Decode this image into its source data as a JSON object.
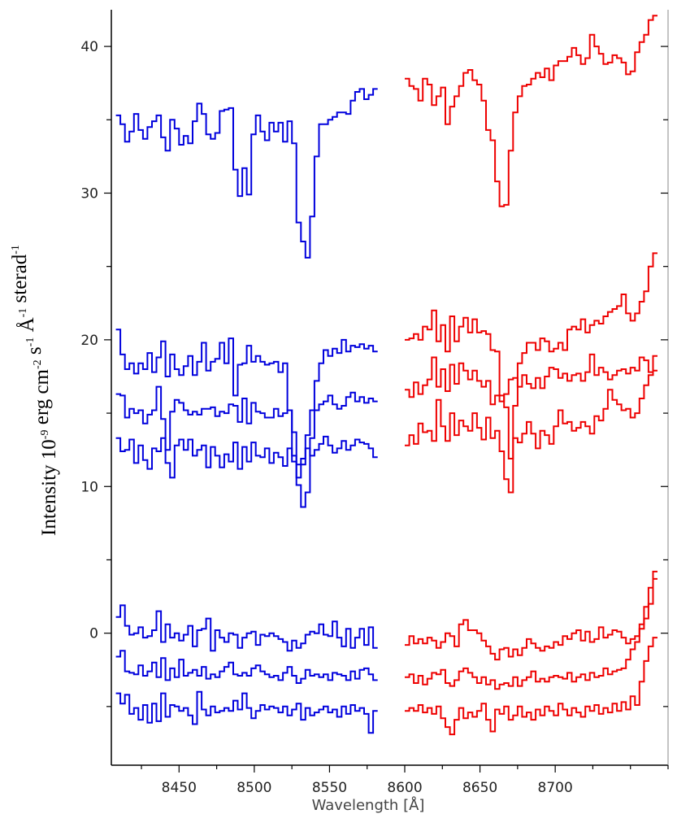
{
  "chart_data": {
    "type": "line",
    "step": true,
    "xlabel": "Wavelength [Å]",
    "ylabel": {
      "parts": [
        {
          "text": "Intensity 10"
        },
        {
          "text": "-9",
          "sup": true
        },
        {
          "text": " erg cm"
        },
        {
          "text": "-2",
          "sup": true
        },
        {
          "text": " s"
        },
        {
          "text": "-1",
          "sup": true
        },
        {
          "text": " Å"
        },
        {
          "text": "-1",
          "sup": true
        },
        {
          "text": " sterad"
        },
        {
          "text": "-1",
          "sup": true
        }
      ]
    },
    "xlim": [
      8405,
      8775
    ],
    "ylim": [
      -9,
      42.5
    ],
    "xticks": [
      8450,
      8500,
      8550,
      8600,
      8650,
      8700
    ],
    "yticks": [
      0,
      10,
      20,
      30,
      40
    ],
    "colors": {
      "blue": "#0000dd",
      "red": "#ee0000",
      "axis": "#000000"
    },
    "series": [
      {
        "color": "blue",
        "x0": 8408,
        "dx": 3,
        "values": [
          35.3,
          34.7,
          33.5,
          34.2,
          35.4,
          34.3,
          33.7,
          34.5,
          34.9,
          35.3,
          33.8,
          32.9,
          35.0,
          34.4,
          33.3,
          33.9,
          33.4,
          34.9,
          36.1,
          35.4,
          34.0,
          33.7,
          34.1,
          35.6,
          35.7,
          35.8,
          31.6,
          29.8,
          31.7,
          29.9,
          34.0,
          35.3,
          34.2,
          33.6,
          34.8,
          34.2,
          34.8,
          33.5,
          34.9,
          33.4,
          28.0,
          26.7,
          25.6,
          28.4,
          32.5,
          34.7,
          34.7,
          35.0,
          35.2,
          35.5,
          35.5,
          35.4,
          36.3,
          36.9,
          37.1,
          36.4,
          36.7,
          37.1
        ]
      },
      {
        "color": "red",
        "x0": 8600,
        "dx": 3,
        "values": [
          37.8,
          37.3,
          37.1,
          36.3,
          37.8,
          37.4,
          36.0,
          36.6,
          37.2,
          34.7,
          35.9,
          36.6,
          37.3,
          38.2,
          38.4,
          37.7,
          37.4,
          36.3,
          34.3,
          33.6,
          30.8,
          29.1,
          29.2,
          32.9,
          35.5,
          36.6,
          37.3,
          37.4,
          37.8,
          38.2,
          37.9,
          38.5,
          37.7,
          38.7,
          39.0,
          39.0,
          39.3,
          39.9,
          39.4,
          38.8,
          39.2,
          40.8,
          40.0,
          39.5,
          38.8,
          38.9,
          39.4,
          39.2,
          38.9,
          38.1,
          38.3,
          39.6,
          40.3,
          40.8,
          41.8,
          42.1
        ]
      },
      {
        "color": "blue",
        "x0": 8408,
        "dx": 3,
        "values": [
          20.7,
          19.0,
          18.0,
          18.4,
          17.7,
          18.4,
          18.0,
          19.1,
          17.8,
          18.8,
          19.9,
          17.5,
          19.0,
          18.0,
          17.6,
          18.2,
          18.9,
          17.6,
          18.5,
          19.8,
          17.9,
          18.5,
          18.7,
          19.8,
          18.4,
          20.1,
          16.2,
          18.3,
          18.4,
          19.6,
          18.5,
          18.9,
          18.5,
          18.3,
          18.4,
          18.5,
          17.8,
          18.4,
          15.2,
          12.1,
          10.1,
          8.6,
          9.6,
          13.3,
          17.2,
          18.4,
          19.3,
          18.9,
          19.4,
          19.1,
          20.0,
          19.2,
          19.6,
          19.5,
          19.7,
          19.4,
          19.6,
          19.2
        ]
      },
      {
        "color": "red",
        "x0": 8600,
        "dx": 3,
        "values": [
          20.0,
          20.1,
          20.4,
          20.0,
          20.9,
          20.7,
          22.0,
          19.9,
          21.0,
          19.2,
          21.6,
          19.9,
          20.9,
          21.5,
          20.5,
          21.4,
          20.5,
          20.6,
          20.4,
          19.3,
          19.2,
          16.2,
          15.4,
          11.9,
          15.5,
          18.4,
          19.1,
          19.8,
          19.8,
          19.3,
          20.1,
          19.9,
          19.2,
          19.4,
          19.8,
          19.3,
          20.7,
          20.9,
          20.7,
          21.4,
          20.5,
          21.0,
          21.3,
          21.1,
          21.6,
          21.9,
          22.1,
          22.3,
          23.1,
          21.8,
          21.3,
          21.8,
          22.6,
          23.3,
          25.0,
          25.9
        ]
      },
      {
        "color": "blue",
        "x0": 8408,
        "dx": 3,
        "values": [
          16.3,
          16.2,
          14.7,
          15.3,
          15.0,
          15.2,
          14.3,
          14.9,
          15.2,
          16.8,
          14.6,
          12.5,
          15.1,
          15.9,
          15.7,
          15.2,
          14.9,
          15.1,
          14.9,
          15.3,
          15.3,
          15.4,
          14.8,
          15.1,
          15.0,
          15.6,
          15.5,
          14.4,
          16.0,
          14.3,
          15.7,
          15.1,
          15.0,
          14.7,
          14.7,
          15.3,
          14.8,
          15.0,
          15.2,
          13.7,
          11.5,
          11.9,
          13.5,
          15.2,
          15.2,
          15.6,
          15.8,
          16.2,
          15.6,
          15.3,
          15.5,
          16.1,
          16.4,
          15.8,
          16.1,
          15.7,
          16.0,
          15.8
        ]
      },
      {
        "color": "red",
        "x0": 8600,
        "dx": 3,
        "values": [
          16.6,
          16.1,
          17.1,
          16.3,
          16.9,
          17.3,
          18.8,
          16.8,
          18.0,
          16.5,
          18.3,
          17.0,
          18.4,
          17.9,
          17.3,
          17.9,
          17.2,
          16.8,
          17.2,
          15.6,
          16.2,
          15.8,
          16.3,
          17.3,
          17.4,
          16.8,
          17.6,
          17.0,
          16.7,
          17.4,
          16.7,
          17.5,
          18.1,
          18.0,
          17.4,
          17.7,
          17.2,
          17.6,
          17.7,
          17.2,
          17.8,
          19.0,
          17.6,
          18.1,
          17.8,
          17.3,
          17.6,
          17.9,
          18.0,
          17.7,
          18.1,
          17.9,
          18.8,
          18.6,
          17.8,
          17.9
        ]
      },
      {
        "color": "blue",
        "x0": 8408,
        "dx": 3,
        "values": [
          13.3,
          12.4,
          12.5,
          13.2,
          11.6,
          12.8,
          11.8,
          11.2,
          12.6,
          12.4,
          13.3,
          11.6,
          10.6,
          12.8,
          13.2,
          12.5,
          13.2,
          12.1,
          12.5,
          12.8,
          11.3,
          12.7,
          12.1,
          11.3,
          12.2,
          11.7,
          13.0,
          11.2,
          12.7,
          11.7,
          13.0,
          12.1,
          12.0,
          12.6,
          11.6,
          12.3,
          12.0,
          11.4,
          12.6,
          11.7,
          10.6,
          11.5,
          12.6,
          12.1,
          12.5,
          12.9,
          13.4,
          12.8,
          12.3,
          12.6,
          13.1,
          12.5,
          12.8,
          13.2,
          13.0,
          12.9,
          12.6,
          12.0
        ]
      },
      {
        "color": "red",
        "x0": 8600,
        "dx": 3,
        "values": [
          12.8,
          13.5,
          12.9,
          14.3,
          13.7,
          13.8,
          13.1,
          15.9,
          14.1,
          13.1,
          15.0,
          13.5,
          14.5,
          14.1,
          13.8,
          15.0,
          14.0,
          13.2,
          14.7,
          13.3,
          13.8,
          12.4,
          10.5,
          9.6,
          13.3,
          13.0,
          13.6,
          14.4,
          13.6,
          12.6,
          13.8,
          13.5,
          12.9,
          14.1,
          15.2,
          14.3,
          14.4,
          13.8,
          14.0,
          14.4,
          14.1,
          13.6,
          14.8,
          14.5,
          15.3,
          16.6,
          15.9,
          15.6,
          15.2,
          15.3,
          14.7,
          15.0,
          16.0,
          16.9,
          17.6,
          18.9
        ]
      },
      {
        "color": "blue",
        "x0": 8408,
        "dx": 3,
        "values": [
          1.1,
          1.9,
          0.5,
          -0.1,
          0.0,
          0.4,
          -0.3,
          -0.2,
          0.2,
          1.5,
          -0.6,
          0.6,
          -0.3,
          0.0,
          -0.5,
          -0.1,
          0.5,
          -0.9,
          0.2,
          0.3,
          1.0,
          -1.2,
          0.2,
          -0.3,
          -0.6,
          0.0,
          -0.1,
          -1.0,
          -0.3,
          0.0,
          0.1,
          -0.8,
          -0.1,
          -0.2,
          0.0,
          -0.2,
          -0.4,
          -0.6,
          -1.2,
          -0.5,
          -1.0,
          -0.7,
          -0.1,
          0.1,
          0.0,
          0.6,
          -0.1,
          -0.2,
          0.8,
          -0.3,
          -0.9,
          0.3,
          -1.0,
          -0.3,
          0.3,
          -0.8,
          0.4,
          -1.0
        ]
      },
      {
        "color": "red",
        "x0": 8600,
        "dx": 3,
        "values": [
          -0.8,
          -0.2,
          -0.7,
          -0.4,
          -0.7,
          -0.3,
          -0.5,
          -1.0,
          -0.6,
          0.0,
          -0.2,
          -0.9,
          0.6,
          0.9,
          0.2,
          0.2,
          0.0,
          -0.5,
          -0.9,
          -1.4,
          -1.8,
          -1.1,
          -1.0,
          -1.6,
          -1.1,
          -1.5,
          -1.0,
          -0.4,
          -0.7,
          -1.0,
          -1.2,
          -0.9,
          -1.0,
          -0.6,
          -0.8,
          -0.2,
          -0.4,
          0.0,
          0.2,
          -0.5,
          0.1,
          -0.6,
          -0.4,
          0.4,
          -0.3,
          -0.1,
          0.2,
          0.1,
          -0.3,
          -0.7,
          -0.4,
          -0.2,
          0.6,
          1.0,
          2.0,
          3.7
        ]
      },
      {
        "color": "blue",
        "x0": 8408,
        "dx": 3,
        "values": [
          -1.6,
          -1.2,
          -2.6,
          -2.7,
          -2.8,
          -2.2,
          -2.9,
          -2.6,
          -2.0,
          -3.0,
          -1.7,
          -3.2,
          -2.4,
          -3.0,
          -1.8,
          -2.9,
          -2.7,
          -2.5,
          -2.9,
          -2.3,
          -3.1,
          -2.8,
          -3.0,
          -2.6,
          -2.3,
          -2.0,
          -2.8,
          -2.9,
          -2.7,
          -2.9,
          -2.4,
          -2.2,
          -2.6,
          -2.8,
          -3.0,
          -2.9,
          -3.2,
          -2.7,
          -2.3,
          -2.9,
          -3.4,
          -3.1,
          -2.5,
          -2.9,
          -2.8,
          -3.0,
          -2.8,
          -3.2,
          -2.7,
          -2.8,
          -2.9,
          -3.2,
          -2.6,
          -3.1,
          -2.5,
          -2.4,
          -2.8,
          -3.2
        ]
      },
      {
        "color": "red",
        "x0": 8600,
        "dx": 3,
        "values": [
          -3.0,
          -2.8,
          -3.4,
          -2.9,
          -3.5,
          -3.1,
          -2.7,
          -2.8,
          -2.5,
          -3.4,
          -3.6,
          -3.2,
          -2.6,
          -2.4,
          -2.7,
          -3.0,
          -3.4,
          -3.0,
          -3.5,
          -3.2,
          -3.8,
          -3.5,
          -3.4,
          -3.6,
          -3.0,
          -3.6,
          -3.2,
          -3.0,
          -2.6,
          -3.3,
          -3.1,
          -3.3,
          -3.0,
          -2.9,
          -3.0,
          -3.1,
          -2.7,
          -3.3,
          -3.0,
          -2.8,
          -3.2,
          -2.7,
          -3.0,
          -2.9,
          -2.4,
          -2.8,
          -2.6,
          -2.5,
          -2.4,
          -1.8,
          -1.1,
          -0.6,
          0.3,
          1.8,
          3.1,
          4.2
        ]
      },
      {
        "color": "blue",
        "x0": 8408,
        "dx": 3,
        "values": [
          -4.1,
          -4.8,
          -4.2,
          -5.5,
          -5.1,
          -5.9,
          -4.9,
          -6.1,
          -4.8,
          -6.0,
          -4.1,
          -5.7,
          -4.9,
          -5.0,
          -5.3,
          -5.1,
          -5.6,
          -6.2,
          -4.0,
          -5.2,
          -5.6,
          -5.0,
          -5.4,
          -5.3,
          -5.1,
          -5.3,
          -4.6,
          -5.2,
          -4.1,
          -5.1,
          -5.8,
          -5.3,
          -4.9,
          -5.2,
          -5.0,
          -5.1,
          -5.4,
          -5.0,
          -5.6,
          -5.2,
          -4.8,
          -5.9,
          -5.1,
          -5.6,
          -5.4,
          -5.2,
          -5.0,
          -5.4,
          -5.2,
          -5.7,
          -5.0,
          -5.5,
          -4.9,
          -5.3,
          -5.1,
          -5.5,
          -6.8,
          -5.3
        ]
      },
      {
        "color": "red",
        "x0": 8600,
        "dx": 3,
        "values": [
          -5.3,
          -5.1,
          -5.3,
          -4.9,
          -5.4,
          -5.1,
          -5.5,
          -5.0,
          -5.8,
          -6.4,
          -6.9,
          -5.9,
          -5.1,
          -5.8,
          -5.4,
          -5.7,
          -5.3,
          -4.8,
          -5.9,
          -6.7,
          -5.2,
          -5.5,
          -5.0,
          -5.9,
          -5.6,
          -5.0,
          -5.7,
          -5.4,
          -5.9,
          -5.2,
          -5.6,
          -5.0,
          -5.3,
          -5.6,
          -4.8,
          -5.2,
          -5.6,
          -5.1,
          -5.4,
          -5.7,
          -5.0,
          -5.3,
          -4.9,
          -5.5,
          -5.1,
          -5.4,
          -4.8,
          -5.3,
          -4.7,
          -5.2,
          -4.3,
          -4.9,
          -3.3,
          -1.9,
          -0.9,
          -0.3
        ]
      }
    ]
  }
}
